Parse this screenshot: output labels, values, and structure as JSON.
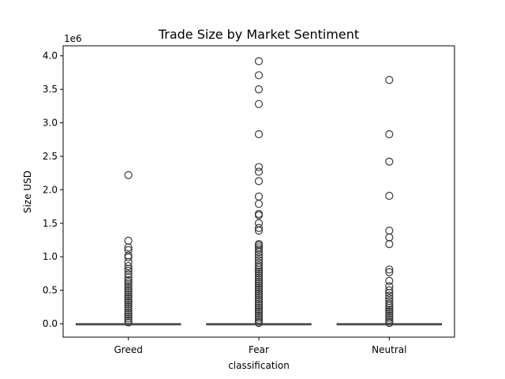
{
  "chart_data": {
    "type": "box",
    "title": "Trade Size by Market Sentiment",
    "xlabel": "classification",
    "ylabel": "Size USD",
    "y_offset_label": "1e6",
    "ylim": [
      -200000,
      4150000
    ],
    "yticks": [
      0,
      500000,
      1000000,
      1500000,
      2000000,
      2500000,
      3000000,
      3500000,
      4000000
    ],
    "ytick_labels": [
      "0.0",
      "0.5",
      "1.0",
      "1.5",
      "2.0",
      "2.5",
      "3.0",
      "3.5",
      "4.0"
    ],
    "grid": false,
    "legend": "none",
    "color": "#3b3b3b",
    "categories": [
      "Greed",
      "Fear",
      "Neutral"
    ],
    "boxes": [
      {
        "category": "Greed",
        "q1": 0,
        "median": 0,
        "q3": 1000,
        "whisker_low": 0,
        "whisker_high": 3000,
        "outliers": [
          2220000,
          1240000,
          1140000,
          1100000,
          1020000,
          990000,
          920000,
          860000,
          820000,
          790000,
          740000,
          690000,
          650000,
          620000,
          590000,
          560000,
          530000,
          500000,
          470000,
          440000,
          410000,
          380000,
          350000,
          320000,
          290000,
          260000,
          230000,
          200000,
          170000,
          140000,
          110000,
          80000,
          50000,
          20000
        ]
      },
      {
        "category": "Fear",
        "q1": 0,
        "median": 0,
        "q3": 1000,
        "whisker_low": 0,
        "whisker_high": 3000,
        "outliers": [
          3920000,
          3710000,
          3500000,
          3280000,
          2830000,
          2340000,
          2270000,
          2130000,
          1900000,
          1790000,
          1640000,
          1620000,
          1500000,
          1430000,
          1390000,
          1190000,
          1170000,
          1140000,
          1110000,
          1070000,
          1030000,
          990000,
          950000,
          910000,
          870000,
          840000,
          810000,
          780000,
          750000,
          720000,
          690000,
          660000,
          630000,
          600000,
          570000,
          540000,
          510000,
          480000,
          450000,
          420000,
          390000,
          360000,
          330000,
          300000,
          270000,
          240000,
          210000,
          180000,
          150000,
          120000,
          90000,
          60000,
          30000,
          10000
        ]
      },
      {
        "category": "Neutral",
        "q1": 0,
        "median": 0,
        "q3": 1000,
        "whisker_low": 0,
        "whisker_high": 3000,
        "outliers": [
          3640000,
          2830000,
          2420000,
          1910000,
          1390000,
          1290000,
          1190000,
          810000,
          770000,
          640000,
          560000,
          500000,
          460000,
          420000,
          380000,
          340000,
          300000,
          270000,
          240000,
          210000,
          180000,
          150000,
          120000,
          90000,
          60000,
          30000,
          10000
        ]
      }
    ]
  }
}
